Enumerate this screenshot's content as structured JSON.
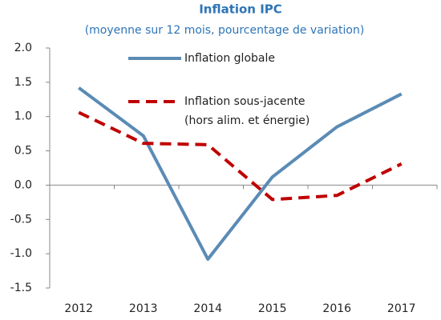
{
  "chart_data": {
    "type": "line",
    "title": "Inflation IPC",
    "subtitle": "(moyenne sur 12 mois, pourcentage de variation)",
    "categories": [
      "2012",
      "2013",
      "2014",
      "2015",
      "2016",
      "2017"
    ],
    "series": [
      {
        "name": "Inflation globale",
        "color": "#5a8bb5",
        "dash": false,
        "values": [
          1.42,
          0.72,
          -1.08,
          0.12,
          0.85,
          1.33
        ]
      },
      {
        "name": "Inflation sous-jacente (hors alim. et énergie)",
        "color": "#c00000",
        "dash": true,
        "values": [
          1.06,
          0.61,
          0.59,
          -0.21,
          -0.15,
          0.31
        ]
      }
    ],
    "ylim": [
      -1.5,
      2.0
    ],
    "yticks": [
      {
        "value": -1.5,
        "label": "-1.5"
      },
      {
        "value": -1,
        "label": "-1.0"
      },
      -0.5,
      {
        "value": 0,
        "label": "0.0"
      },
      0.5,
      {
        "value": 1,
        "label": "1.0"
      },
      1.5,
      {
        "value": 2,
        "label": "2.0"
      }
    ],
    "grid": false
  }
}
